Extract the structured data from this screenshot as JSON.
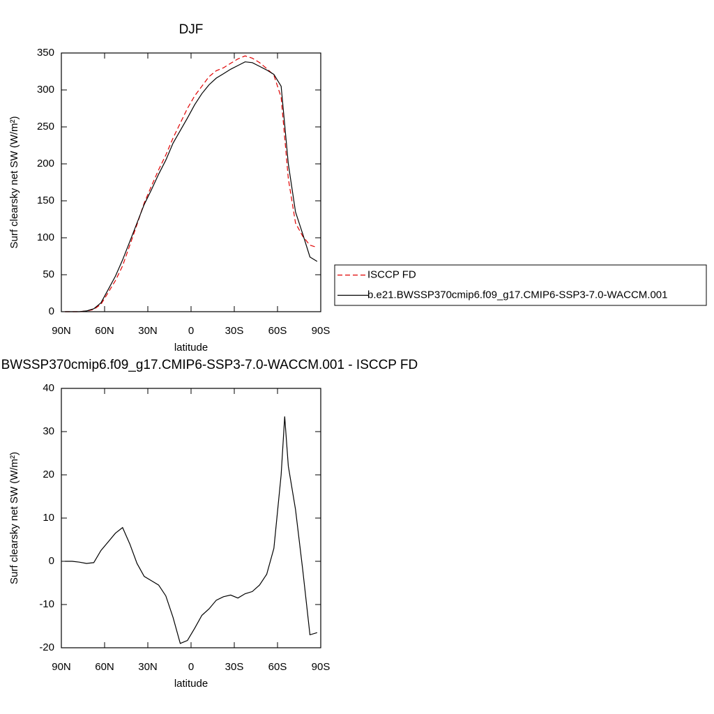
{
  "chart_data": [
    {
      "type": "line",
      "title": "DJF",
      "xlabel": "latitude",
      "ylabel": "Surf clearsky net SW (W/m²)",
      "xlim": [
        90,
        -90
      ],
      "xticks": [
        {
          "value": 90,
          "label": "90N"
        },
        {
          "value": 60,
          "label": "60N"
        },
        {
          "value": 30,
          "label": "30N"
        },
        0,
        {
          "value": -30,
          "label": "30S"
        },
        {
          "value": -60,
          "label": "60S"
        },
        {
          "value": -90,
          "label": "90S"
        }
      ],
      "ylim": [
        0,
        350
      ],
      "yticks": [
        0,
        50,
        100,
        150,
        200,
        250,
        300,
        350
      ],
      "legend": "right",
      "x": [
        87.5,
        82.5,
        77.5,
        72.5,
        67.5,
        62.5,
        57.5,
        52.5,
        47.5,
        42.5,
        37.5,
        32.5,
        27.5,
        22.5,
        17.5,
        12.5,
        7.5,
        2.5,
        -2.5,
        -7.5,
        -12.5,
        -17.5,
        -22.5,
        -27.5,
        -32.5,
        -37.5,
        -42.5,
        -47.5,
        -52.5,
        -57.5,
        -62.5,
        -67.5,
        -72.5,
        -77.5,
        -82.5,
        -87.5
      ],
      "series": [
        {
          "name": "ISCCP FD",
          "color": "#e00000",
          "dashed": true,
          "values": [
            0,
            0,
            0,
            1,
            3,
            10,
            26,
            42,
            62,
            90,
            118,
            147,
            170,
            192,
            212,
            235,
            255,
            275,
            292,
            305,
            318,
            326,
            330,
            336,
            342,
            346,
            343,
            337,
            329,
            320,
            290,
            180,
            120,
            102,
            90,
            87
          ]
        },
        {
          "name": "b.e21.BWSSP370cmip6.f09_g17.CMIP6-SSP3-7.0-WACCM.001",
          "color": "#000000",
          "dashed": false,
          "values": [
            0,
            0,
            0,
            1,
            4,
            12,
            30,
            48,
            70,
            95,
            120,
            145,
            165,
            186,
            205,
            228,
            245,
            262,
            280,
            295,
            307,
            316,
            322,
            328,
            333,
            338,
            337,
            332,
            327,
            321,
            305,
            200,
            135,
            105,
            74,
            68
          ]
        }
      ]
    },
    {
      "type": "line",
      "title": "b.e21.BWSSP370cmip6.f09_g17.CMIP6-SSP3-7.0-WACCM.001 - ISCCP FD",
      "xlabel": "latitude",
      "ylabel": "Surf clearsky net SW (W/m²)",
      "xlim": [
        90,
        -90
      ],
      "xticks": [
        {
          "value": 90,
          "label": "90N"
        },
        {
          "value": 60,
          "label": "60N"
        },
        {
          "value": 30,
          "label": "30N"
        },
        0,
        {
          "value": -30,
          "label": "30S"
        },
        {
          "value": -60,
          "label": "60S"
        },
        {
          "value": -90,
          "label": "90S"
        }
      ],
      "ylim": [
        -20,
        40
      ],
      "yticks": [
        -20,
        -10,
        0,
        10,
        20,
        30,
        40
      ],
      "x": [
        87.5,
        82.5,
        77.5,
        72.5,
        67.5,
        62.5,
        57.5,
        52.5,
        47.5,
        42.5,
        37.5,
        32.5,
        27.5,
        22.5,
        17.5,
        12.5,
        7.5,
        2.5,
        -2.5,
        -7.5,
        -12.5,
        -17.5,
        -22.5,
        -27.5,
        -32.5,
        -37.5,
        -42.5,
        -47.5,
        -52.5,
        -57.5,
        -62.5,
        -65,
        -67.5,
        -72.5,
        -77.5,
        -82.5,
        -87.5
      ],
      "series": [
        {
          "color": "#000000",
          "dashed": false,
          "values": [
            0,
            0,
            -0.2,
            -0.5,
            -0.3,
            2.5,
            4.5,
            6.5,
            7.8,
            4,
            -0.5,
            -3.5,
            -4.5,
            -5.5,
            -8,
            -13,
            -19,
            -18.3,
            -15.5,
            -12.5,
            -11,
            -9,
            -8.2,
            -7.8,
            -8.5,
            -7.5,
            -7,
            -5.5,
            -3,
            3,
            20,
            33.5,
            22,
            12,
            -2,
            -17,
            -16.5
          ]
        }
      ]
    }
  ]
}
